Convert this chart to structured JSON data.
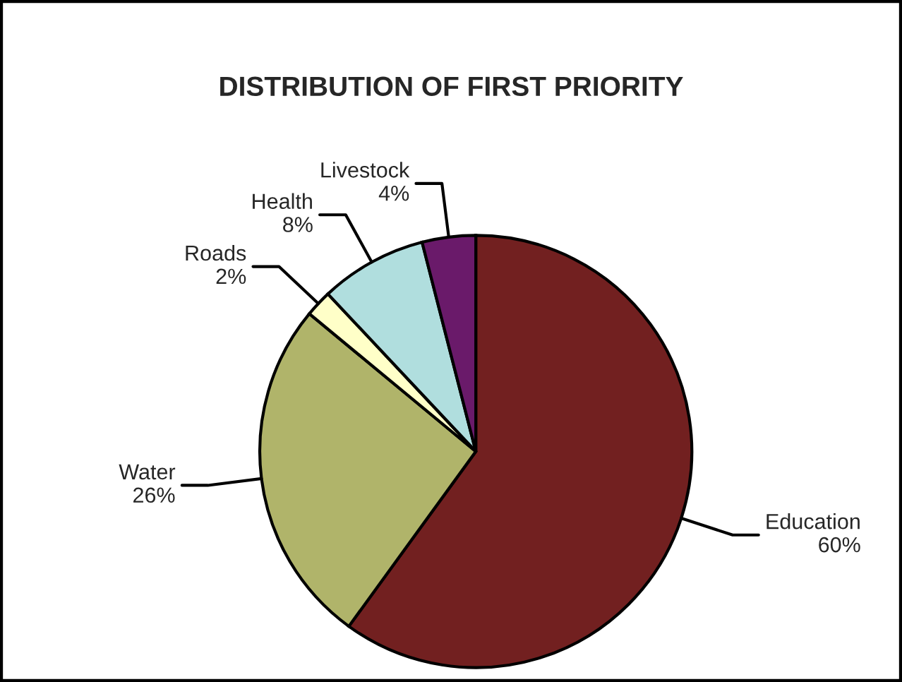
{
  "chart_data": {
    "type": "pie",
    "title": "DISTRIBUTION OF FIRST PRIORITY",
    "categories": [
      "Education",
      "Water",
      "Roads",
      "Health",
      "Livestock"
    ],
    "values": [
      60,
      26,
      2,
      8,
      4
    ],
    "value_labels": [
      "60%",
      "26%",
      "2%",
      "8%",
      "4%"
    ],
    "colors": [
      "#722020",
      "#b0b46a",
      "#ffffc8",
      "#b0dede",
      "#6a1a6a"
    ],
    "legend": false
  }
}
